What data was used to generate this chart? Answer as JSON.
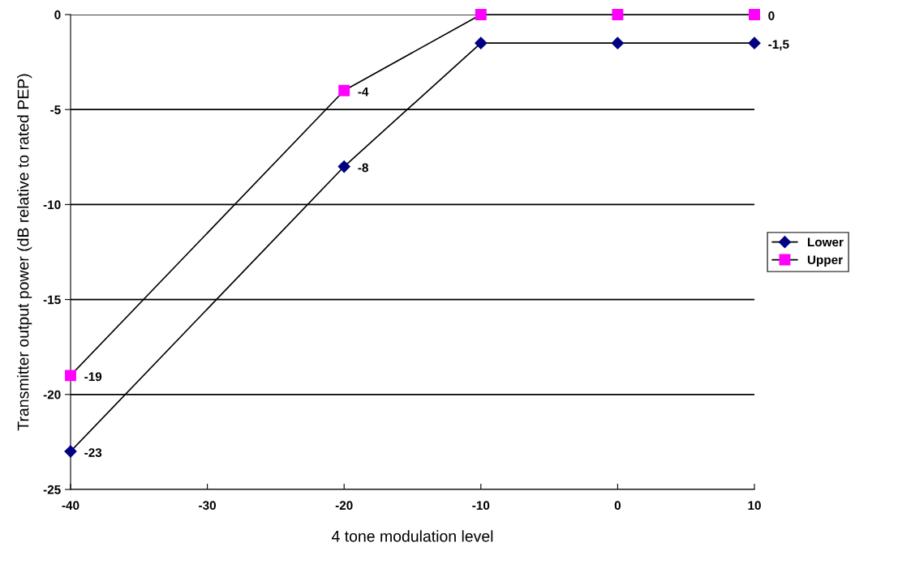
{
  "chart_data": {
    "type": "line",
    "xlabel": "4 tone modulation level",
    "ylabel": "Transmitter output power (dB relative to rated PEP)",
    "x": [
      -40,
      -20,
      -10,
      0,
      10
    ],
    "series": [
      {
        "name": "Lower",
        "color": "#000080",
        "marker": "diamond",
        "values": [
          -23,
          -8,
          -1.5,
          -1.5,
          -1.5
        ],
        "value_labels": [
          "-23",
          "-8",
          null,
          null,
          "-1,5"
        ]
      },
      {
        "name": "Upper",
        "color": "#ff00ff",
        "marker": "square",
        "values": [
          -19,
          -4,
          0,
          0,
          0
        ],
        "value_labels": [
          "-19",
          "-4",
          null,
          null,
          "0"
        ]
      }
    ],
    "xlim": [
      -40,
      10
    ],
    "xticks": [
      -40,
      -30,
      -20,
      -10,
      0,
      10
    ],
    "ylim": [
      -25,
      0
    ],
    "yticks": [
      -25,
      -20,
      -15,
      -10,
      -5,
      0
    ],
    "grid": "y",
    "legend": "right",
    "line_style": "solid"
  }
}
